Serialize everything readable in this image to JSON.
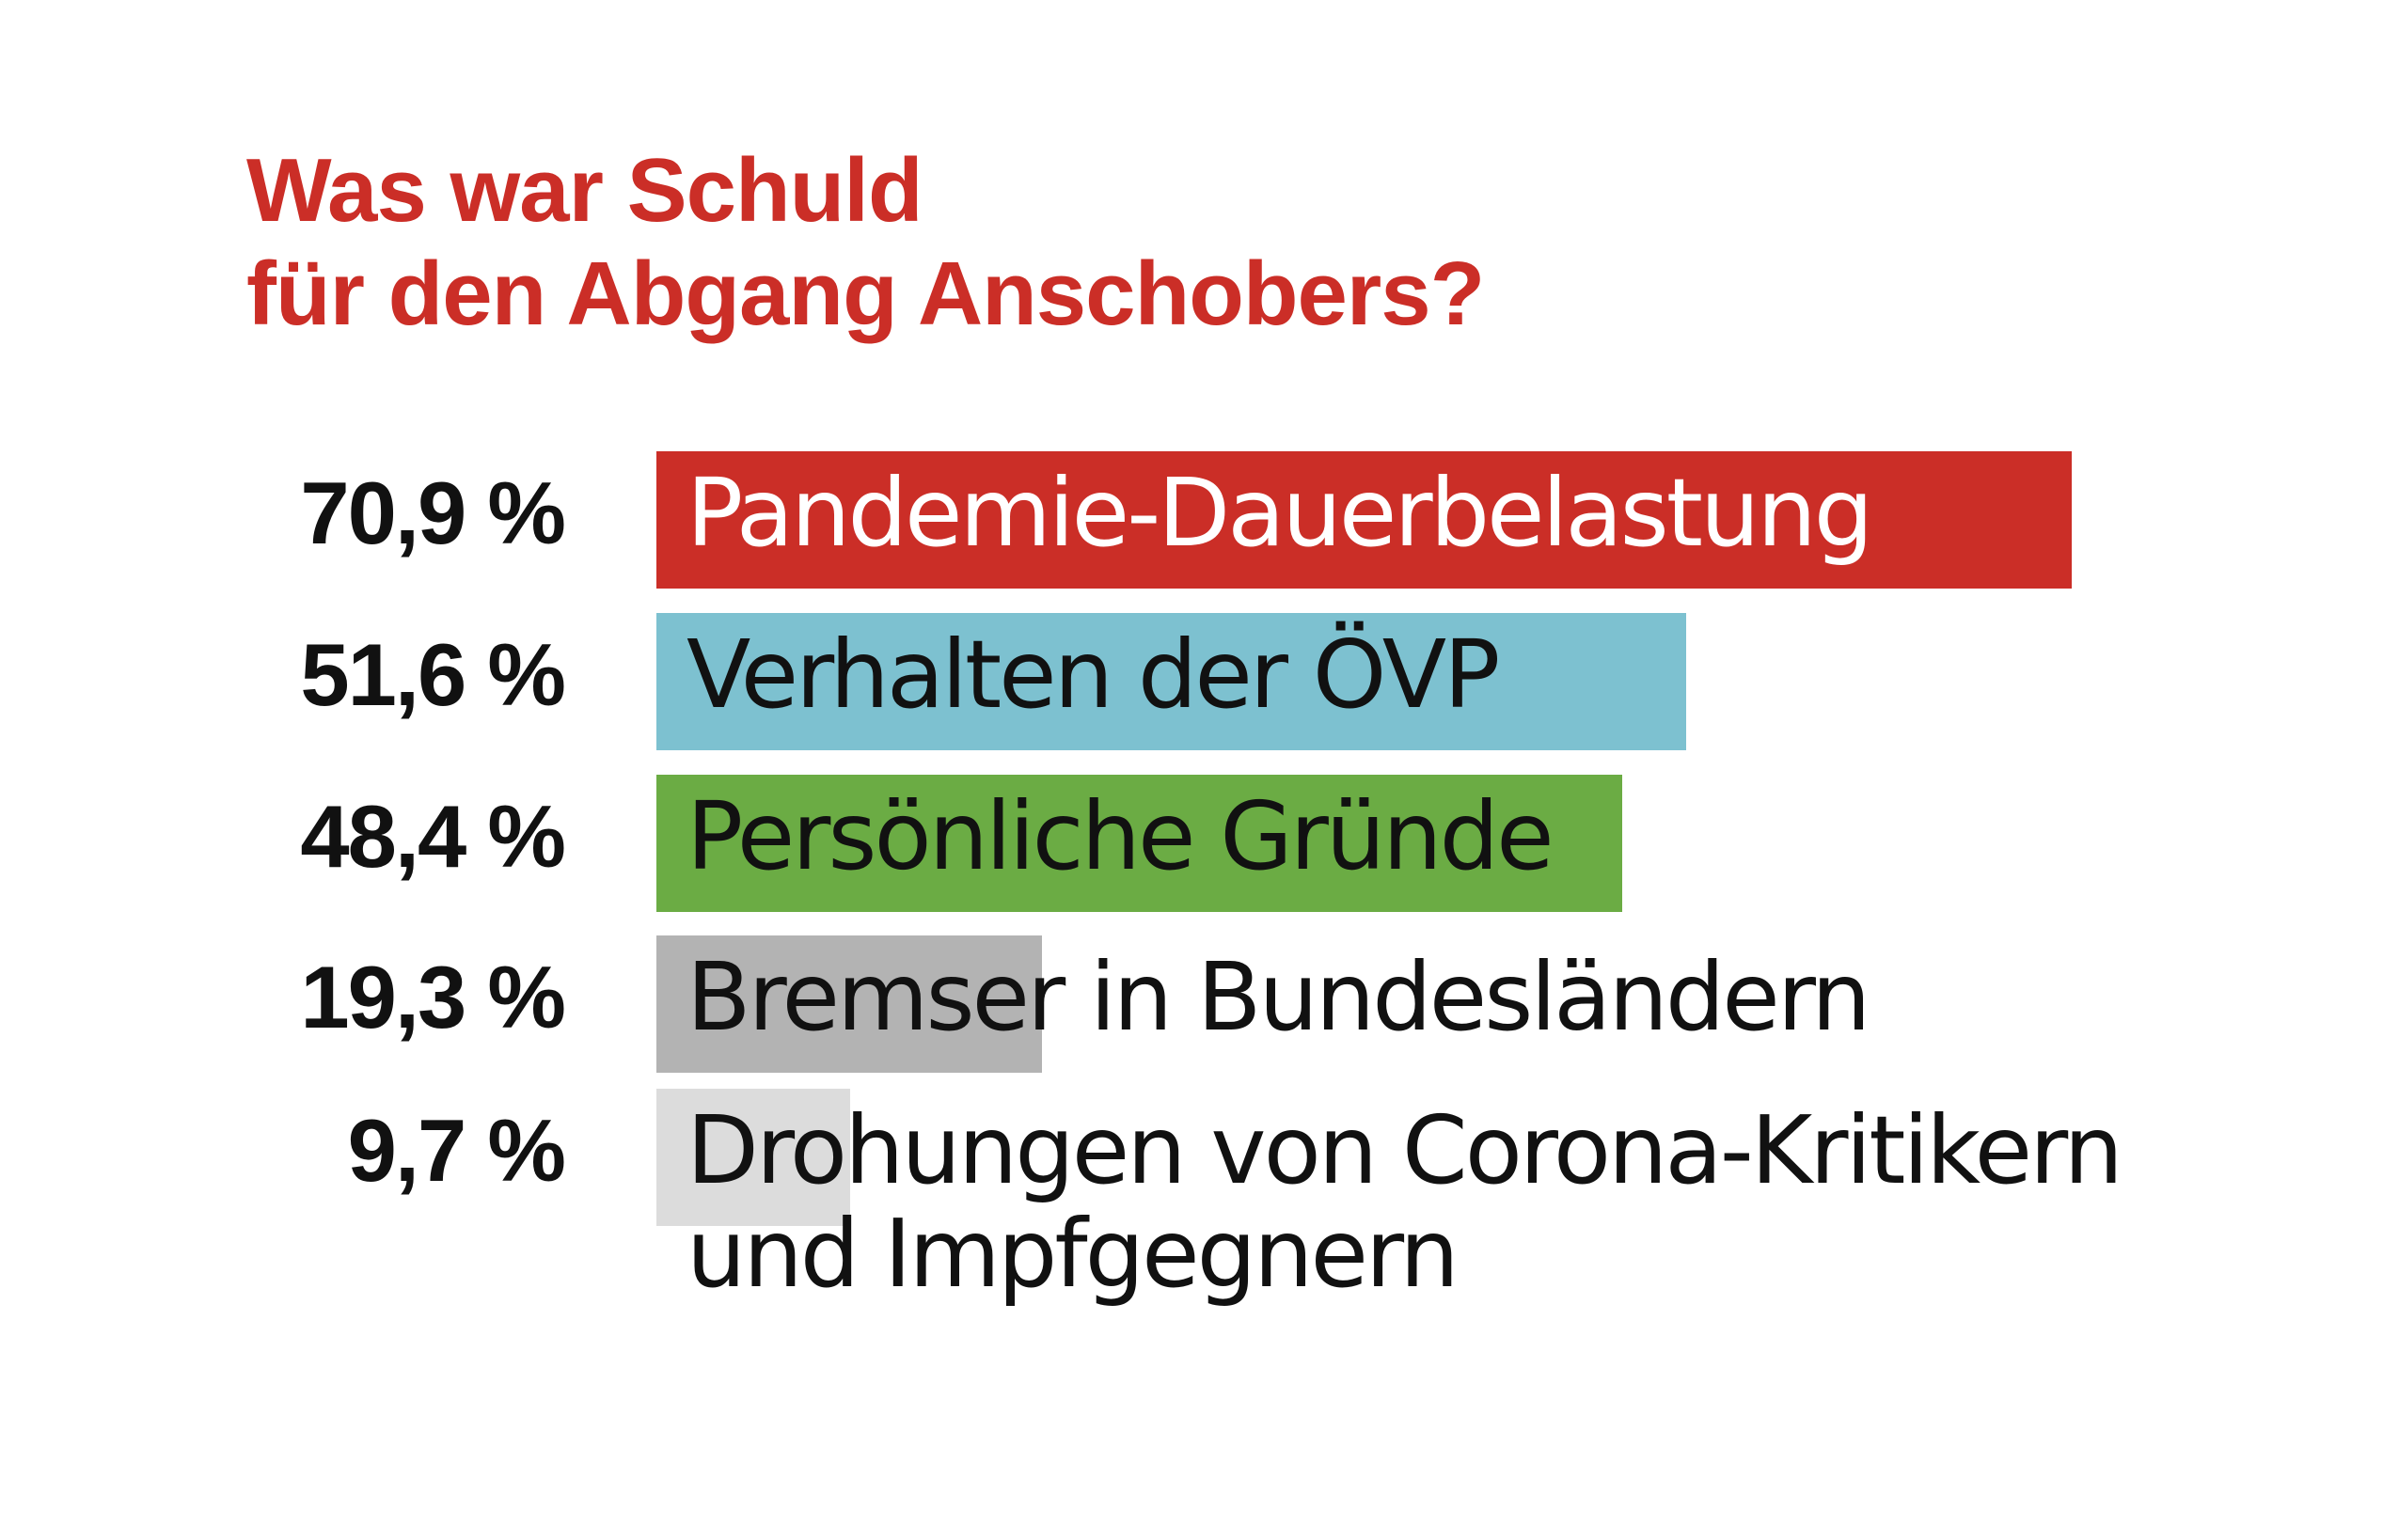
{
  "chart_data": {
    "type": "bar",
    "orientation": "horizontal",
    "title_lines": [
      "Was war Schuld",
      "für den Abgang Anschobers?"
    ],
    "categories": [
      "Pandemie-Dauerbelastung",
      "Verhalten der ÖVP",
      "Persönliche Gründe",
      "Bremser in Bundesländern",
      "Drohungen von Corona-Kritikern und Impfgegnern"
    ],
    "label_lines": [
      [
        "Pandemie-Dauerbelastung"
      ],
      [
        "Verhalten der ÖVP"
      ],
      [
        "Persönliche Gründe"
      ],
      [
        "Bremser in Bundesländern"
      ],
      [
        "Drohungen von Corona-Kritikern",
        "und Impfgegnern"
      ]
    ],
    "values": [
      70.9,
      51.6,
      48.4,
      19.3,
      9.7
    ],
    "value_labels": [
      "70,9 %",
      "51,6 %",
      "48,4 %",
      "19,3 %",
      "9,7 %"
    ],
    "unit": "%",
    "xlim": [
      0,
      70.9
    ],
    "grid": false,
    "legend": "none",
    "colors": {
      "title": "#cb2e27",
      "bars": [
        "#cb2e27",
        "#7dc1d0",
        "#6bac44",
        "#b3b3b3",
        "#dcdcdc"
      ],
      "label_text": [
        "#ffffff",
        "#111111",
        "#111111",
        "#111111",
        "#111111"
      ]
    }
  }
}
